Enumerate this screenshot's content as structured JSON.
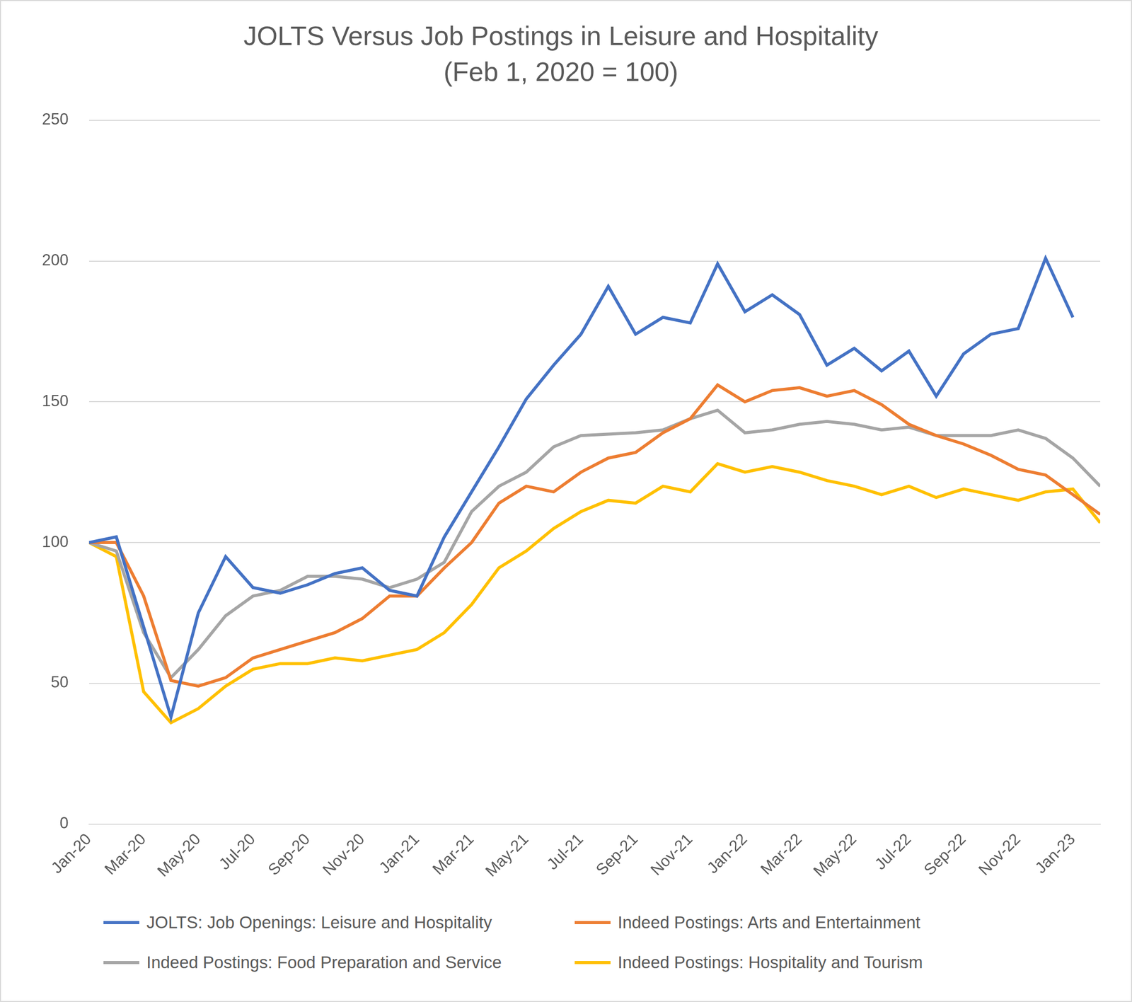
{
  "chart_data": {
    "type": "line",
    "title": "JOLTS Versus Job Postings in Leisure and Hospitality",
    "subtitle": "(Feb 1, 2020 = 100)",
    "categories": [
      "Jan-20",
      null,
      "Mar-20",
      null,
      "May-20",
      null,
      "Jul-20",
      null,
      "Sep-20",
      null,
      "Nov-20",
      null,
      "Jan-21",
      null,
      "Mar-21",
      null,
      "May-21",
      null,
      "Jul-21",
      null,
      "Sep-21",
      null,
      "Nov-21",
      null,
      "Jan-22",
      null,
      "Mar-22",
      null,
      "May-22",
      null,
      "Jul-22",
      null,
      "Sep-22",
      null,
      "Nov-22",
      null,
      "Jan-23",
      null
    ],
    "series": [
      {
        "name": "JOLTS: Job Openings: Leisure and Hospitality",
        "color": "#4472c4",
        "values": [
          100,
          102,
          70,
          38,
          75,
          95,
          84,
          82,
          85,
          89,
          91,
          83,
          81,
          102,
          118,
          134,
          151,
          163,
          174,
          191,
          174,
          180,
          178,
          199,
          182,
          188,
          181,
          163,
          169,
          161,
          168,
          152,
          167,
          174,
          176,
          201,
          180,
          null
        ]
      },
      {
        "name": "Indeed Postings: Arts and Entertainment",
        "color": "#ed7d31",
        "values": [
          100,
          100,
          81,
          51,
          49,
          52,
          59,
          62,
          65,
          68,
          73,
          81,
          81,
          91,
          100,
          114,
          120,
          118,
          125,
          130,
          132,
          139,
          144,
          156,
          150,
          154,
          155,
          152,
          154,
          149,
          142,
          138,
          135,
          131,
          126,
          124,
          117,
          110
        ]
      },
      {
        "name": "Indeed Postings: Food Preparation and Service",
        "color": "#a5a5a5",
        "values": [
          100,
          97,
          68,
          52,
          62,
          74,
          81,
          83,
          88,
          88,
          87,
          84,
          87,
          93,
          111,
          120,
          125,
          134,
          138,
          138.5,
          139,
          140,
          144,
          147,
          139,
          140,
          142,
          143,
          142,
          140,
          141,
          138,
          138,
          138,
          140,
          137,
          130,
          120
        ]
      },
      {
        "name": "Indeed Postings: Hospitality and Tourism",
        "color": "#ffc000",
        "values": [
          100,
          95,
          47,
          36,
          41,
          49,
          55,
          57,
          57,
          59,
          58,
          60,
          62,
          68,
          78,
          91,
          97,
          105,
          111,
          115,
          114,
          120,
          118,
          128,
          125,
          127,
          125,
          122,
          120,
          117,
          120,
          116,
          119,
          117,
          115,
          118,
          119,
          107
        ]
      }
    ],
    "ylim": [
      0,
      250
    ],
    "yticks": [
      0,
      50,
      100,
      150,
      200,
      250
    ],
    "grid": true,
    "legend": "bottom",
    "marker": "none",
    "line_style": "solid"
  }
}
